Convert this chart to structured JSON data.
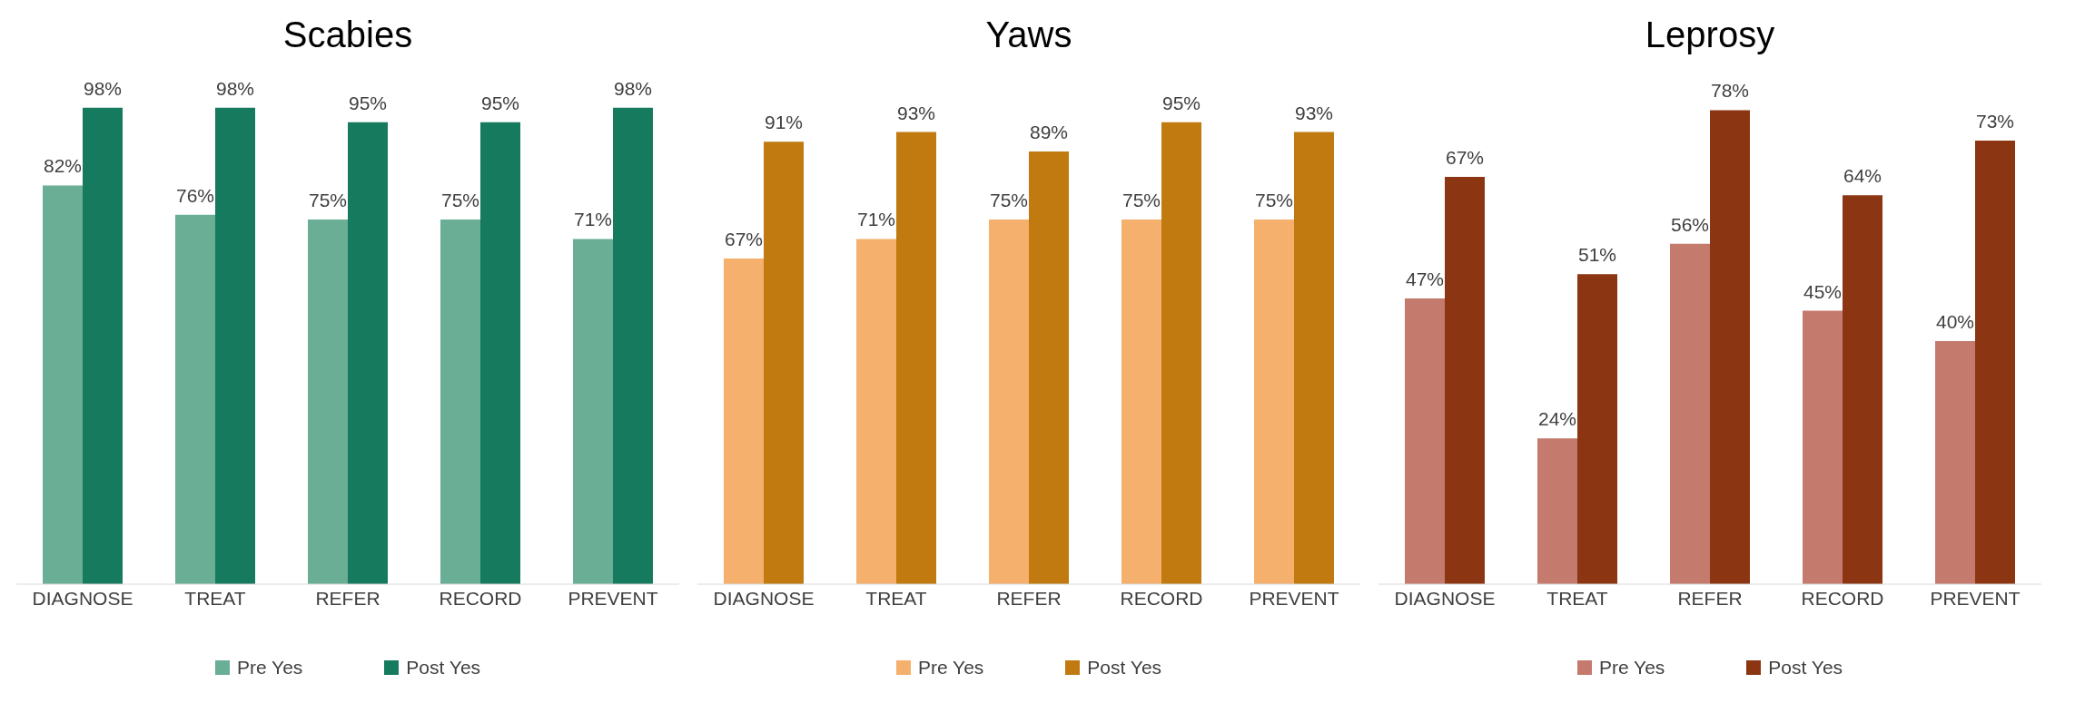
{
  "chart_data": [
    {
      "type": "bar",
      "title": "Scabies",
      "categories": [
        "DIAGNOSE",
        "TREAT",
        "REFER",
        "RECORD",
        "PREVENT"
      ],
      "legend": "bottom",
      "series": [
        {
          "name": "Pre Yes",
          "color": "#6aae96",
          "values": [
            82,
            76,
            75,
            75,
            71
          ],
          "value_labels": [
            "82%",
            "76%",
            "75%",
            "75%",
            "71%"
          ]
        },
        {
          "name": "Post Yes",
          "color": "#167a5e",
          "values": [
            98,
            98,
            95,
            95,
            98
          ],
          "value_labels": [
            "98%",
            "98%",
            "95%",
            "95%",
            "98%"
          ]
        }
      ]
    },
    {
      "type": "bar",
      "title": "Yaws",
      "categories": [
        "DIAGNOSE",
        "TREAT",
        "REFER",
        "RECORD",
        "PREVENT"
      ],
      "legend": "bottom",
      "series": [
        {
          "name": "Pre Yes",
          "color": "#f4b06c",
          "values": [
            67,
            71,
            75,
            75,
            75
          ],
          "value_labels": [
            "67%",
            "71%",
            "75%",
            "75%",
            "75%"
          ]
        },
        {
          "name": "Post Yes",
          "color": "#c07a10",
          "values": [
            91,
            93,
            89,
            95,
            93
          ],
          "value_labels": [
            "91%",
            "93%",
            "89%",
            "95%",
            "93%"
          ]
        }
      ]
    },
    {
      "type": "bar",
      "title": "Leprosy",
      "categories": [
        "DIAGNOSE",
        "TREAT",
        "REFER",
        "RECORD",
        "PREVENT"
      ],
      "legend": "bottom",
      "series": [
        {
          "name": "Pre Yes",
          "color": "#c47b6e",
          "values": [
            47,
            24,
            56,
            45,
            40
          ],
          "value_labels": [
            "47%",
            "24%",
            "56%",
            "45%",
            "40%"
          ]
        },
        {
          "name": "Post Yes",
          "color": "#8b3513",
          "values": [
            67,
            51,
            78,
            64,
            73
          ],
          "value_labels": [
            "67%",
            "51%",
            "78%",
            "64%",
            "73%"
          ]
        }
      ]
    }
  ]
}
